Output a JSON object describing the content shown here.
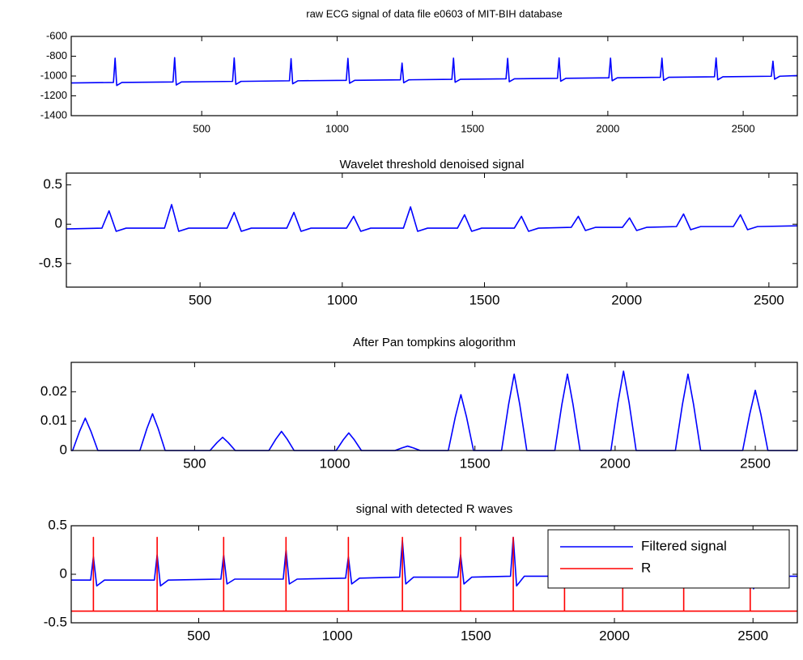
{
  "chart_data": [
    {
      "type": "line",
      "title": "raw ECG signal of data file e0603 of MIT-BIH database",
      "xlim": [
        18,
        2700
      ],
      "ylim": [
        -1400,
        -600
      ],
      "xticks": [
        500,
        1000,
        1500,
        2000,
        2500
      ],
      "yticks": [
        -1400,
        -1200,
        -1000,
        -800,
        -600
      ],
      "series": [
        {
          "color": "#0000ff",
          "x": [
            18,
            174,
            180,
            186,
            205,
            394,
            400,
            406,
            425,
            614,
            620,
            626,
            645,
            824,
            830,
            836,
            855,
            1034,
            1040,
            1046,
            1065,
            1234,
            1240,
            1246,
            1265,
            1424,
            1430,
            1436,
            1455,
            1624,
            1630,
            1636,
            1655,
            1814,
            1820,
            1826,
            1845,
            2004,
            2010,
            2016,
            2035,
            2194,
            2200,
            2206,
            2225,
            2394,
            2400,
            2406,
            2425,
            2604,
            2610,
            2616,
            2635,
            2700
          ],
          "values": [
            -1070,
            -1065,
            -820,
            -1095,
            -1065,
            -1060,
            -815,
            -1090,
            -1060,
            -1054,
            -818,
            -1084,
            -1054,
            -1048,
            -825,
            -1078,
            -1048,
            -1043,
            -822,
            -1073,
            -1043,
            -1038,
            -870,
            -1068,
            -1038,
            -1033,
            -820,
            -1063,
            -1033,
            -1028,
            -822,
            -1058,
            -1028,
            -1023,
            -818,
            -1053,
            -1023,
            -1018,
            -820,
            -1048,
            -1018,
            -1013,
            -820,
            -1043,
            -1013,
            -1008,
            -818,
            -1038,
            -1008,
            -1002,
            -850,
            -1032,
            -1002,
            -995
          ]
        }
      ]
    },
    {
      "type": "line",
      "title": "Wavelet threshold denoised signal",
      "xlim": [
        30,
        2600
      ],
      "ylim": [
        -0.8,
        0.65
      ],
      "xticks": [
        500,
        1000,
        1500,
        2000,
        2500
      ],
      "yticks": [
        -0.5,
        0,
        0.5
      ],
      "series": [
        {
          "color": "#0000ff",
          "x": [
            30,
            155,
            180,
            205,
            240,
            375,
            400,
            425,
            460,
            595,
            620,
            645,
            680,
            805,
            830,
            855,
            890,
            1015,
            1040,
            1065,
            1100,
            1215,
            1240,
            1265,
            1300,
            1405,
            1430,
            1455,
            1490,
            1605,
            1630,
            1655,
            1690,
            1805,
            1830,
            1855,
            1890,
            1985,
            2010,
            2035,
            2070,
            2175,
            2200,
            2225,
            2260,
            2375,
            2400,
            2425,
            2460,
            2600
          ],
          "values": [
            -0.06,
            -0.05,
            0.17,
            -0.09,
            -0.05,
            -0.05,
            0.25,
            -0.09,
            -0.05,
            -0.05,
            0.15,
            -0.09,
            -0.05,
            -0.05,
            0.15,
            -0.09,
            -0.05,
            -0.05,
            0.1,
            -0.09,
            -0.05,
            -0.05,
            0.22,
            -0.09,
            -0.05,
            -0.05,
            0.12,
            -0.09,
            -0.05,
            -0.05,
            0.1,
            -0.09,
            -0.05,
            -0.04,
            0.1,
            -0.08,
            -0.04,
            -0.04,
            0.08,
            -0.08,
            -0.04,
            -0.03,
            0.13,
            -0.07,
            -0.03,
            -0.03,
            0.12,
            -0.07,
            -0.03,
            -0.02
          ]
        }
      ]
    },
    {
      "type": "line",
      "title": "After Pan tompkins alogorithm",
      "xlim": [
        60,
        2650
      ],
      "ylim": [
        0,
        0.03
      ],
      "xticks": [
        500,
        1000,
        1500,
        2000,
        2500
      ],
      "yticks": [
        0,
        0.01,
        0.02
      ],
      "series": [
        {
          "color": "#0000ff",
          "x": [
            60,
            65,
            90,
            110,
            130,
            155,
            305,
            330,
            350,
            370,
            395,
            555,
            580,
            600,
            620,
            645,
            765,
            790,
            810,
            830,
            855,
            1005,
            1030,
            1050,
            1070,
            1095,
            1215,
            1240,
            1260,
            1280,
            1305,
            1405,
            1430,
            1450,
            1470,
            1495,
            1595,
            1620,
            1640,
            1660,
            1685,
            1785,
            1810,
            1830,
            1850,
            1875,
            1985,
            2010,
            2030,
            2050,
            2075,
            2215,
            2240,
            2260,
            2280,
            2305,
            2455,
            2480,
            2500,
            2520,
            2545,
            2650
          ],
          "values": [
            0,
            0,
            0.0066,
            0.011,
            0.0066,
            0,
            0,
            0.0075,
            0.0125,
            0.0075,
            0,
            0,
            0.0027,
            0.0045,
            0.0027,
            0,
            0,
            0.0039,
            0.0065,
            0.0039,
            0,
            0,
            0.0036,
            0.006,
            0.0036,
            0,
            0,
            0.0009,
            0.0015,
            0.0009,
            0,
            0,
            0.0114,
            0.019,
            0.0114,
            0,
            0,
            0.0156,
            0.026,
            0.0156,
            0,
            0,
            0.0156,
            0.026,
            0.0156,
            0,
            0,
            0.0162,
            0.027,
            0.0162,
            0,
            0,
            0.0156,
            0.026,
            0.0156,
            0,
            0,
            0.0123,
            0.0205,
            0.0123,
            0,
            0
          ]
        }
      ]
    },
    {
      "type": "line",
      "title": "signal with detected R waves",
      "xlim": [
        40,
        2660
      ],
      "ylim": [
        -0.5,
        0.5
      ],
      "xticks": [
        500,
        1000,
        1500,
        2000,
        2500
      ],
      "yticks": [
        -0.5,
        0,
        0.5
      ],
      "legend": "northeast",
      "series": [
        {
          "name": "Filtered signal",
          "color": "#0000ff",
          "x": [
            40,
            110,
            120,
            132,
            160,
            340,
            350,
            362,
            390,
            580,
            590,
            602,
            630,
            805,
            815,
            827,
            855,
            1030,
            1040,
            1052,
            1080,
            1225,
            1235,
            1247,
            1275,
            1435,
            1445,
            1457,
            1485,
            1625,
            1635,
            1647,
            1675,
            1810,
            1820,
            1832,
            1860,
            2020,
            2030,
            2042,
            2070,
            2240,
            2250,
            2262,
            2290,
            2480,
            2490,
            2502,
            2530,
            2660
          ],
          "values": [
            -0.06,
            -0.06,
            0.18,
            -0.12,
            -0.06,
            -0.06,
            0.2,
            -0.12,
            -0.06,
            -0.05,
            0.2,
            -0.1,
            -0.05,
            -0.05,
            0.25,
            -0.1,
            -0.05,
            -0.04,
            0.18,
            -0.1,
            -0.04,
            -0.03,
            0.35,
            -0.1,
            -0.03,
            -0.03,
            0.2,
            -0.1,
            -0.03,
            -0.02,
            0.38,
            -0.12,
            -0.02,
            -0.02,
            0.15,
            -0.1,
            -0.02,
            -0.02,
            0.15,
            -0.1,
            -0.02,
            -0.02,
            0.15,
            -0.12,
            -0.02,
            -0.02,
            0.15,
            -0.15,
            -0.02,
            -0.02
          ]
        },
        {
          "name": "R",
          "color": "#ff0000",
          "x": [
            40,
            120,
            120,
            120,
            350,
            350,
            350,
            590,
            590,
            590,
            815,
            815,
            815,
            1040,
            1040,
            1040,
            1235,
            1235,
            1235,
            1445,
            1445,
            1445,
            1635,
            1635,
            1635,
            1820,
            1820,
            1820,
            2030,
            2030,
            2030,
            2250,
            2250,
            2250,
            2490,
            2490,
            2490,
            2660
          ],
          "values": [
            -0.38,
            -0.38,
            0.38,
            -0.38,
            -0.38,
            0.38,
            -0.38,
            -0.38,
            0.38,
            -0.38,
            -0.38,
            0.38,
            -0.38,
            -0.38,
            0.38,
            -0.38,
            -0.38,
            0.38,
            -0.38,
            -0.38,
            0.38,
            -0.38,
            -0.38,
            0.38,
            -0.38,
            -0.38,
            0.38,
            -0.38,
            -0.38,
            0.38,
            -0.38,
            -0.38,
            0.38,
            -0.38,
            -0.38,
            0.38,
            -0.38,
            -0.38
          ]
        }
      ]
    }
  ]
}
